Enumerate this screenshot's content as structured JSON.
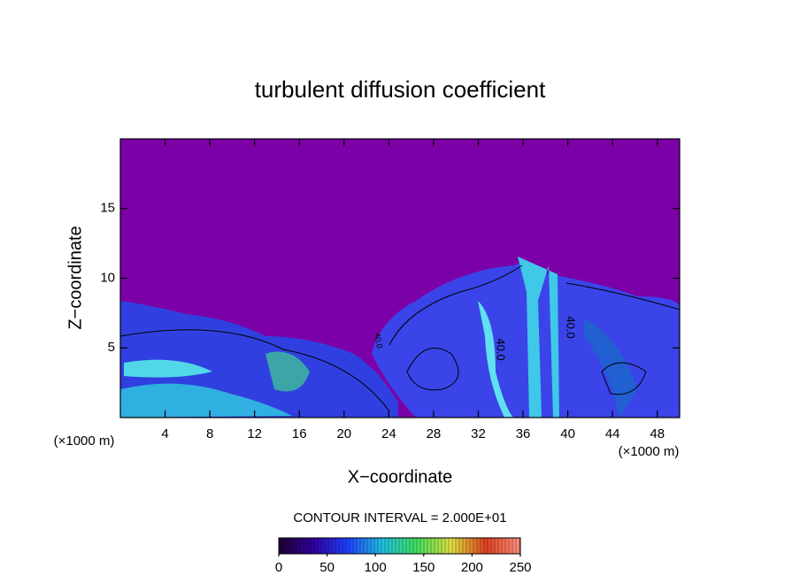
{
  "chart_data": {
    "type": "contour",
    "title": "turbulent diffusion coefficient",
    "xlabel": "X−coordinate",
    "ylabel": "Z−coordinate",
    "xunit": "(×1000 m)",
    "yunit": "(×1000 m)",
    "xlim": [
      0,
      50
    ],
    "ylim": [
      0,
      20
    ],
    "xticks": [
      4,
      8,
      12,
      16,
      20,
      24,
      28,
      32,
      36,
      40,
      44,
      48
    ],
    "yticks": [
      5,
      10,
      15
    ],
    "contour_labels": [
      "40.0",
      "40.0",
      "40.0"
    ],
    "contour_interval": "CONTOUR INTERVAL = 2.000E+01",
    "colorbar": {
      "lim": [
        0,
        250
      ],
      "ticks": [
        0,
        50,
        100,
        150,
        200,
        250
      ],
      "colors": [
        "#200030",
        "#3000a0",
        "#2040ff",
        "#20c0e0",
        "#40e060",
        "#e0e040",
        "#e04020",
        "#ff9080"
      ]
    }
  }
}
